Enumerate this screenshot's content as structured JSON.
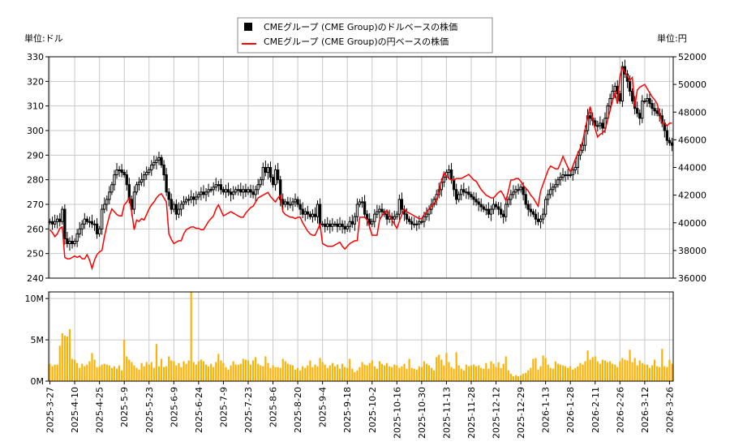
{
  "chart_data": {
    "type": "candlestick+line+bar",
    "legend": {
      "placement": "top-center",
      "entries": [
        "CMEグループ (CME Group)のドルベースの株価",
        "CMEグループ (CME Group)の円ベースの株価"
      ]
    },
    "left_unit": "単位:ドル",
    "right_unit": "単位:円",
    "left_axis": {
      "range": [
        240,
        330
      ],
      "ticks": [
        240,
        250,
        260,
        270,
        280,
        290,
        300,
        310,
        320,
        330
      ]
    },
    "right_axis": {
      "range": [
        36000,
        52000
      ],
      "ticks": [
        36000,
        38000,
        40000,
        42000,
        44000,
        46000,
        48000,
        50000,
        52000
      ]
    },
    "volume_axis": {
      "range": [
        0,
        10.8
      ],
      "ticks": [
        0,
        5,
        10
      ],
      "tick_labels": [
        "0M",
        "5M",
        "10M"
      ]
    },
    "grid": true,
    "colors": {
      "candle": "#000000",
      "yen_line": "#ff0000",
      "volume": "#ffb000"
    },
    "x_tick_labels": [
      "2025-3-27",
      "2025-4-10",
      "2025-4-25",
      "2025-5-9",
      "2025-5-23",
      "2025-6-9",
      "2025-6-24",
      "2025-7-9",
      "2025-7-23",
      "2025-8-6",
      "2025-8-20",
      "2025-9-4",
      "2025-9-18",
      "2025-10-2",
      "2025-10-16",
      "2025-10-30",
      "2025-11-13",
      "2025-11-28",
      "2025-12-12",
      "2025-12-29",
      "2026-1-13",
      "2026-1-28",
      "2026-2-11",
      "2026-2-26",
      "2026-3-12",
      "2026-3-26"
    ],
    "usd_close": [
      263,
      262,
      263,
      264,
      263,
      268,
      256,
      254,
      255,
      254,
      255,
      258,
      260,
      262,
      264,
      263,
      263,
      262,
      262,
      258,
      260,
      268,
      270,
      272,
      275,
      278,
      282,
      284,
      284,
      283,
      282,
      278,
      272,
      268,
      275,
      278,
      279,
      280,
      282,
      283,
      284,
      286,
      287,
      288,
      289,
      286,
      282,
      275,
      272,
      268,
      270,
      266,
      268,
      270,
      271,
      272,
      272,
      273,
      272,
      273,
      274,
      275,
      274,
      275,
      276,
      276,
      277,
      278,
      278,
      276,
      275,
      276,
      275,
      274,
      275,
      276,
      276,
      275,
      276,
      275,
      276,
      275,
      274,
      276,
      278,
      280,
      285,
      283,
      285,
      281,
      278,
      284,
      280,
      272,
      270,
      271,
      270,
      270,
      271,
      272,
      270,
      268,
      266,
      267,
      266,
      265,
      266,
      265,
      270,
      262,
      262,
      261,
      262,
      261,
      262,
      262,
      261,
      262,
      261,
      260,
      261,
      263,
      262,
      265,
      270,
      271,
      271,
      266,
      264,
      262,
      263,
      266,
      267,
      268,
      267,
      266,
      264,
      265,
      264,
      265,
      266,
      272,
      268,
      266,
      264,
      263,
      262,
      262,
      262,
      263,
      263,
      265,
      266,
      268,
      270,
      272,
      274,
      276,
      279,
      281,
      283,
      284,
      280,
      276,
      272,
      274,
      276,
      275,
      275,
      274,
      273,
      272,
      271,
      270,
      269,
      268,
      268,
      266,
      268,
      270,
      269,
      268,
      266,
      265,
      270,
      272,
      274,
      275,
      276,
      276,
      277,
      274,
      270,
      268,
      267,
      266,
      264,
      263,
      264,
      266,
      272,
      274,
      276,
      277,
      278,
      280,
      281,
      282,
      282,
      282,
      282,
      284,
      285,
      290,
      292,
      294,
      300,
      306,
      305,
      304,
      302,
      302,
      303,
      301,
      305,
      310,
      313,
      316,
      318,
      315,
      312,
      326,
      323,
      320,
      316,
      312,
      309,
      307,
      305,
      312,
      312,
      313,
      311,
      309,
      308,
      307,
      306,
      303,
      300,
      296,
      295,
      294
    ],
    "jpy_close": [
      39500,
      39300,
      39000,
      39200,
      39600,
      39700,
      37500,
      37400,
      37400,
      37500,
      37600,
      37500,
      37600,
      37400,
      37400,
      37700,
      37300,
      36700,
      37300,
      37700,
      37900,
      38000,
      39000,
      39800,
      40500,
      41000,
      40800,
      40600,
      40500,
      40500,
      41300,
      41500,
      41800,
      40800,
      39500,
      40200,
      40100,
      40300,
      40200,
      40600,
      41000,
      41300,
      41500,
      41800,
      42000,
      42100,
      41800,
      41500,
      39200,
      38800,
      38500,
      38600,
      38700,
      38700,
      39200,
      39500,
      39600,
      39700,
      39700,
      39600,
      39600,
      39500,
      39500,
      39800,
      40100,
      40300,
      40500,
      41000,
      41300,
      40900,
      40500,
      40600,
      40700,
      40800,
      40700,
      40600,
      40500,
      40400,
      40400,
      40700,
      40900,
      41100,
      41200,
      41500,
      41800,
      41900,
      42000,
      42100,
      42200,
      41900,
      41700,
      41500,
      41800,
      42000,
      40800,
      40600,
      40500,
      40400,
      40400,
      40300,
      40400,
      40400,
      40000,
      39700,
      39400,
      39200,
      39100,
      39100,
      39500,
      39900,
      38500,
      38400,
      38300,
      38300,
      38300,
      38400,
      38500,
      38600,
      38300,
      38100,
      38300,
      38500,
      38600,
      38700,
      38700,
      40400,
      40400,
      40400,
      40200,
      39700,
      39100,
      39100,
      39100,
      40200,
      40500,
      40700,
      40900,
      40600,
      40200,
      39900,
      39600,
      40100,
      40600,
      41000,
      40800,
      40700,
      40600,
      40500,
      40400,
      40300,
      40300,
      40600,
      40800,
      41000,
      41200,
      41400,
      41600,
      42300,
      43000,
      43600,
      43400,
      43200,
      43100,
      43100,
      43200,
      43200,
      43200,
      43300,
      43400,
      43500,
      43300,
      43100,
      43000,
      42700,
      42400,
      42200,
      42000,
      41900,
      41800,
      41800,
      42000,
      42200,
      42300,
      42000,
      41600,
      42300,
      43100,
      43100,
      43200,
      43200,
      43000,
      42700,
      42500,
      42300,
      42000,
      41800,
      41500,
      41200,
      42300,
      42800,
      43300,
      43800,
      44100,
      44000,
      43900,
      43900,
      44300,
      44800,
      44400,
      44000,
      43700,
      44100,
      44600,
      45000,
      45400,
      45900,
      46800,
      47600,
      48400,
      47500,
      46800,
      46200,
      46400,
      46500,
      46700,
      47400,
      48100,
      48800,
      49400,
      48600,
      50600,
      51200,
      50900,
      50600,
      50300,
      50500,
      48400,
      49600,
      49800,
      49900,
      50000,
      49700,
      49400,
      49100,
      48900,
      48600,
      47900,
      47200,
      47200,
      47000,
      47200,
      47200
    ],
    "volume_millions": [
      2.1,
      1.8,
      2.0,
      2.0,
      4.3,
      5.8,
      5.5,
      5.4,
      6.3,
      2.7,
      2.6,
      2.2,
      1.6,
      2.1,
      1.8,
      2.0,
      2.4,
      3.4,
      2.6,
      1.7,
      1.8,
      2.0,
      2.1,
      2.0,
      1.9,
      1.6,
      1.8,
      1.5,
      1.9,
      1.3,
      5.0,
      3.0,
      2.6,
      2.3,
      1.9,
      1.6,
      1.4,
      2.2,
      1.8,
      2.3,
      2.0,
      2.3,
      1.6,
      4.5,
      1.8,
      2.7,
      1.7,
      1.8,
      3.0,
      2.5,
      2.4,
      1.9,
      2.2,
      1.7,
      2.4,
      2.1,
      2.5,
      10.8,
      2.3,
      2.0,
      2.4,
      2.6,
      2.4,
      2.0,
      1.8,
      2.1,
      1.7,
      2.3,
      3.3,
      2.5,
      2.2,
      1.7,
      1.4,
      1.9,
      2.4,
      2.0,
      2.0,
      2.1,
      2.7,
      2.6,
      2.5,
      2.0,
      2.5,
      2.9,
      2.1,
      1.9,
      1.8,
      3.0,
      2.2,
      1.6,
      1.9,
      1.7,
      1.7,
      1.6,
      2.7,
      2.4,
      2.1,
      2.0,
      1.9,
      1.4,
      1.6,
      1.3,
      1.8,
      1.6,
      1.9,
      2.5,
      1.7,
      2.0,
      1.8,
      2.8,
      2.3,
      2.0,
      1.6,
      1.9,
      2.2,
      1.8,
      2.0,
      1.5,
      2.1,
      1.7,
      1.6,
      2.7,
      1.5,
      1.1,
      1.3,
      1.7,
      2.3,
      2.0,
      1.9,
      2.2,
      2.5,
      1.8,
      1.5,
      2.4,
      2.1,
      1.9,
      2.2,
      1.8,
      1.7,
      2.0,
      1.9,
      1.6,
      1.8,
      2.1,
      1.5,
      2.7,
      1.6,
      1.5,
      1.4,
      1.8,
      1.7,
      2.4,
      2.1,
      1.9,
      1.6,
      1.3,
      2.9,
      3.2,
      2.6,
      1.9,
      3.4,
      2.3,
      1.7,
      1.5,
      3.5,
      1.9,
      1.5,
      1.3,
      2.0,
      1.8,
      1.9,
      2.0,
      1.8,
      1.9,
      1.6,
      1.5,
      2.2,
      1.5,
      2.4,
      2.1,
      1.7,
      2.3,
      1.6,
      2.1,
      3.0,
      1.3,
      0.9,
      0.6,
      0.7,
      0.6,
      0.7,
      0.9,
      1.0,
      1.3,
      1.6,
      2.7,
      2.8,
      1.4,
      1.8,
      3.1,
      2.8,
      2.0,
      1.6,
      1.5,
      2.4,
      2.1,
      2.0,
      1.9,
      1.8,
      1.6,
      1.8,
      1.4,
      1.6,
      1.8,
      2.2,
      2.0,
      2.4,
      3.7,
      2.6,
      2.9,
      3.0,
      2.4,
      2.1,
      2.6,
      2.5,
      2.3,
      2.4,
      2.1,
      2.0,
      1.7,
      2.4,
      2.8,
      2.6,
      2.5,
      3.8,
      2.3,
      2.8,
      1.9,
      2.5,
      2.2,
      2.0,
      2.0,
      1.6,
      1.9,
      2.6,
      1.8,
      1.7,
      3.9,
      1.8,
      1.7,
      2.6,
      2.1
    ]
  }
}
